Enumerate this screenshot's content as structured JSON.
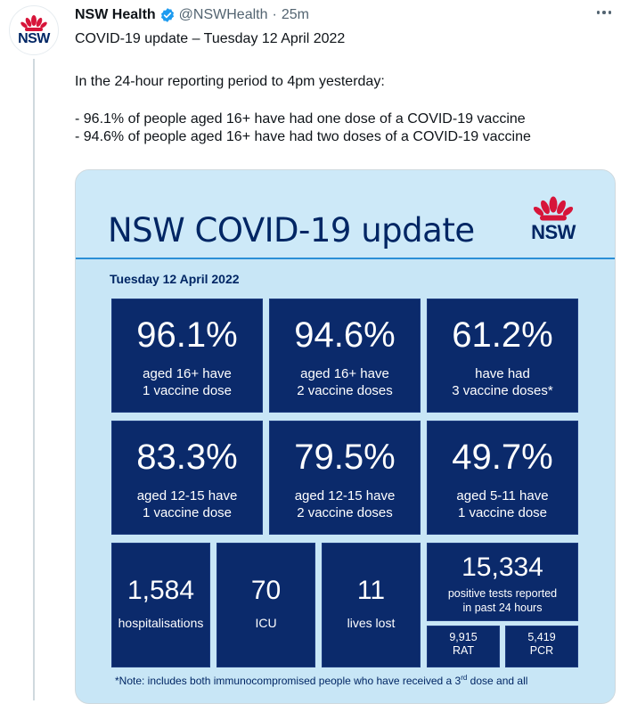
{
  "account": {
    "avatar_text": "NSW",
    "name": "NSW Health",
    "handle": "@NSWHealth",
    "separator": "·",
    "time": "25m"
  },
  "tweet": {
    "line1": "COVID-19 update – Tuesday 12 April 2022",
    "line2": "In the 24-hour reporting period to 4pm yesterday:",
    "line3": "- 96.1% of people aged 16+ have had one dose of a COVID-19 vaccine",
    "line4": "- 94.6% of people aged 16+ have had two doses of a COVID-19 vaccine"
  },
  "infographic": {
    "title": "NSW COVID-19 update",
    "logo_text": "NSW",
    "date": "Tuesday 12 April 2022",
    "tiles_row1": [
      {
        "value": "96.1%",
        "line1": "aged 16+ have",
        "line2": "1 vaccine dose"
      },
      {
        "value": "94.6%",
        "line1": "aged 16+ have",
        "line2": "2 vaccine doses"
      },
      {
        "value": "61.2%",
        "line1": "have had",
        "line2": "3 vaccine doses*"
      }
    ],
    "tiles_row2": [
      {
        "value": "83.3%",
        "line1": "aged 12-15 have",
        "line2": "1 vaccine dose"
      },
      {
        "value": "79.5%",
        "line1": "aged 12-15 have",
        "line2": "2 vaccine doses"
      },
      {
        "value": "49.7%",
        "line1": "aged 5-11 have",
        "line2": "1 vaccine dose"
      }
    ],
    "hospitalisations": {
      "value": "1,584",
      "label": "hospitalisations"
    },
    "icu": {
      "value": "70",
      "label": "ICU"
    },
    "lives_lost": {
      "value": "11",
      "label": "lives lost"
    },
    "positive_tests": {
      "value": "15,334",
      "line1": "positive tests reported",
      "line2": "in past 24 hours"
    },
    "rat": {
      "value": "9,915",
      "label": "RAT"
    },
    "pcr": {
      "value": "5,419",
      "label": "PCR"
    },
    "note_part1": "*Note: includes both immunocompromised people who have received a 3",
    "note_sup": "rd",
    "note_part2": " dose and all"
  },
  "colors": {
    "brand_navy": "#002664",
    "tile_bg": "#0b2a6b",
    "panel_bg": "#c8e6f6",
    "waratah_red": "#d7153a",
    "verified_blue": "#1d9bf0"
  }
}
